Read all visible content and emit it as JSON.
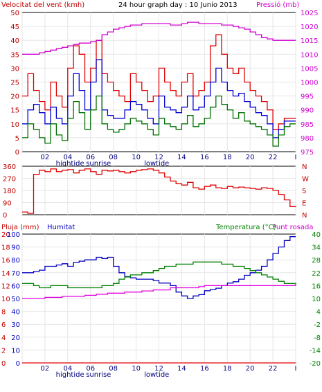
{
  "chart_data": [
    {
      "type": "line",
      "title": "24 hour graph day : 10 Junio 2013",
      "left_axis_label": "Velocitat del vent (kmh)",
      "right_axis_label": "Pressió (mb)",
      "x_tick_labels": [
        "02",
        "04",
        "06",
        "08",
        "10",
        "12",
        "14",
        "16",
        "18",
        "20",
        "22",
        "I"
      ],
      "x_annotations": [
        "hightide",
        "sunrise",
        "lowtide"
      ],
      "ylim_left": [
        0,
        50
      ],
      "ylim_right": [
        975,
        1025
      ],
      "yticks_left": [
        "0",
        "5",
        "10",
        "15",
        "20",
        "25",
        "30",
        "35",
        "40",
        "45",
        "50"
      ],
      "yticks_right": [
        "975",
        "980",
        "985",
        "990",
        "995",
        "1000",
        "1005",
        "1010",
        "1015",
        "1020",
        "1025"
      ],
      "x_hours": [
        0,
        0.5,
        1,
        1.5,
        2,
        2.5,
        3,
        3.5,
        4,
        4.5,
        5,
        5.5,
        6,
        6.5,
        7,
        7.5,
        8,
        8.5,
        9,
        9.5,
        10,
        10.5,
        11,
        11.5,
        12,
        12.5,
        13,
        13.5,
        14,
        14.5,
        15,
        15.5,
        16,
        16.5,
        17,
        17.5,
        18,
        18.5,
        19,
        19.5,
        20,
        20.5,
        21,
        21.5,
        22,
        22.5,
        23,
        23.5,
        24
      ],
      "series": [
        {
          "name": "gust",
          "color": "#e00000",
          "axis": "left",
          "values": [
            20,
            28,
            22,
            18,
            15,
            25,
            20,
            16,
            30,
            38,
            35,
            25,
            30,
            40,
            28,
            25,
            22,
            20,
            18,
            28,
            25,
            22,
            18,
            20,
            30,
            25,
            22,
            20,
            25,
            28,
            20,
            22,
            25,
            38,
            42,
            35,
            30,
            28,
            30,
            25,
            22,
            20,
            18,
            15,
            8,
            10,
            12,
            12,
            12
          ]
        },
        {
          "name": "average",
          "color": "#0000d0",
          "axis": "left",
          "values": [
            10,
            15,
            17,
            14,
            10,
            16,
            12,
            10,
            20,
            28,
            22,
            15,
            25,
            33,
            15,
            13,
            12,
            12,
            15,
            18,
            17,
            15,
            12,
            10,
            20,
            16,
            15,
            14,
            16,
            20,
            15,
            16,
            20,
            25,
            30,
            25,
            22,
            20,
            21,
            18,
            16,
            14,
            13,
            10,
            5,
            8,
            11,
            11,
            11
          ]
        },
        {
          "name": "wind",
          "color": "#007000",
          "axis": "left",
          "values": [
            5,
            10,
            8,
            5,
            3,
            10,
            6,
            4,
            12,
            18,
            14,
            8,
            15,
            20,
            10,
            8,
            7,
            8,
            10,
            12,
            11,
            10,
            8,
            6,
            12,
            10,
            9,
            8,
            10,
            13,
            9,
            10,
            12,
            16,
            20,
            17,
            15,
            12,
            14,
            11,
            10,
            9,
            8,
            6,
            2,
            6,
            9,
            10,
            10
          ]
        },
        {
          "name": "pressure",
          "color": "#d000d0",
          "axis": "right",
          "values": [
            1010,
            1010,
            1010,
            1010.5,
            1011,
            1011.5,
            1012,
            1012.5,
            1013,
            1013.5,
            1014,
            1014,
            1014.5,
            1015,
            1017,
            1018,
            1019,
            1019.5,
            1020,
            1020.5,
            1020.5,
            1021,
            1021,
            1021,
            1021,
            1021,
            1020.5,
            1020.5,
            1021,
            1021.5,
            1021.5,
            1021,
            1021,
            1021,
            1021,
            1020.5,
            1020.5,
            1020,
            1019.5,
            1019,
            1018,
            1017,
            1016,
            1015.5,
            1015,
            1015,
            1015,
            1015,
            1015
          ]
        }
      ]
    },
    {
      "type": "scatter",
      "left_ticks": [
        "0",
        "90",
        "180",
        "270",
        "360"
      ],
      "right_labels": [
        "N",
        "W",
        "S",
        "E",
        "N"
      ],
      "ylim": [
        0,
        360
      ],
      "x_hours": [
        0,
        0.5,
        1,
        1.5,
        2,
        2.5,
        3,
        3.5,
        4,
        4.5,
        5,
        5.5,
        6,
        6.5,
        7,
        7.5,
        8,
        8.5,
        9,
        9.5,
        10,
        10.5,
        11,
        11.5,
        12,
        12.5,
        13,
        13.5,
        14,
        14.5,
        15,
        15.5,
        16,
        16.5,
        17,
        17.5,
        18,
        18.5,
        19,
        19.5,
        20,
        20.5,
        21,
        21.5,
        22,
        22.5,
        23,
        23.5,
        24
      ],
      "series": [
        {
          "name": "direction",
          "color": "#e00000",
          "values": [
            20,
            10,
            300,
            330,
            320,
            340,
            320,
            330,
            335,
            310,
            330,
            340,
            320,
            300,
            330,
            325,
            330,
            320,
            310,
            320,
            330,
            335,
            340,
            330,
            310,
            280,
            250,
            230,
            220,
            240,
            200,
            190,
            210,
            220,
            200,
            195,
            210,
            200,
            205,
            200,
            195,
            190,
            200,
            195,
            180,
            150,
            110,
            60,
            55
          ]
        }
      ]
    },
    {
      "type": "line",
      "labels": {
        "rain": "Pluja (mm)",
        "humidity": "Humitat",
        "temperature": "Temperatura (°C)",
        "dewpoint": "Punt rosada"
      },
      "rain_ticks": [
        "0",
        "2",
        "4",
        "6",
        "8",
        "10",
        "12",
        "14",
        "16",
        "18",
        "20"
      ],
      "humidity_ticks": [
        "0",
        "10",
        "20",
        "30",
        "40",
        "50",
        "60",
        "70",
        "80",
        "90",
        "100"
      ],
      "temp_ticks": [
        "-20",
        "-14",
        "-8",
        "-2",
        "4",
        "10",
        "16",
        "22",
        "28",
        "34",
        "40"
      ],
      "ylim_humidity": [
        0,
        100
      ],
      "ylim_temp": [
        -20,
        40
      ],
      "x_tick_labels": [
        "02",
        "04",
        "06",
        "08",
        "10",
        "12",
        "14",
        "16",
        "18",
        "20",
        "22",
        "I"
      ],
      "x_annotations": [
        "hightide",
        "sunrise",
        "lowtide"
      ],
      "x_hours": [
        0,
        0.5,
        1,
        1.5,
        2,
        2.5,
        3,
        3.5,
        4,
        4.5,
        5,
        5.5,
        6,
        6.5,
        7,
        7.5,
        8,
        8.5,
        9,
        9.5,
        10,
        10.5,
        11,
        11.5,
        12,
        12.5,
        13,
        13.5,
        14,
        14.5,
        15,
        15.5,
        16,
        16.5,
        17,
        17.5,
        18,
        18.5,
        19,
        19.5,
        20,
        20.5,
        21,
        21.5,
        22,
        22.5,
        23,
        23.5,
        24
      ],
      "series": [
        {
          "name": "humidity",
          "color": "#0000c0",
          "axis": "humidity",
          "values": [
            70,
            70,
            71,
            72,
            75,
            75,
            76,
            77,
            75,
            78,
            79,
            80,
            80,
            82,
            81,
            82,
            75,
            70,
            67,
            66,
            65,
            65,
            65,
            64,
            62,
            62,
            60,
            55,
            52,
            50,
            52,
            53,
            56,
            57,
            58,
            60,
            62,
            63,
            65,
            68,
            70,
            72,
            75,
            80,
            85,
            90,
            95,
            98,
            98
          ]
        },
        {
          "name": "temperature",
          "color": "#008000",
          "axis": "temp",
          "values": [
            17,
            17,
            16,
            15,
            15,
            16,
            16,
            16,
            15,
            15,
            15,
            15,
            15,
            15,
            16,
            16,
            17,
            19,
            20,
            21,
            21,
            22,
            22,
            23,
            24,
            25,
            25,
            26,
            26,
            26,
            27,
            27,
            27,
            27,
            27,
            26,
            26,
            25,
            25,
            24,
            23,
            22,
            21,
            20,
            19,
            18,
            17,
            17,
            16
          ]
        },
        {
          "name": "dewpoint",
          "color": "#e000e0",
          "axis": "temp",
          "values": [
            10,
            10,
            10,
            10,
            10.5,
            10.5,
            10.5,
            11,
            11,
            11,
            11,
            11.5,
            11.5,
            12,
            12,
            12.5,
            12.5,
            12.5,
            13,
            13,
            13,
            13.5,
            13.5,
            14,
            14,
            14,
            15,
            15,
            15,
            15,
            15,
            15.5,
            16,
            16,
            16,
            16,
            16,
            16,
            16,
            16,
            16,
            16,
            16,
            16,
            16,
            16,
            16,
            16,
            16
          ]
        },
        {
          "name": "rain",
          "color": "#e00000",
          "axis": "rain",
          "values": [
            0,
            0,
            0,
            0,
            0,
            0,
            0,
            0,
            0,
            0,
            0,
            0,
            0,
            0,
            0,
            0,
            0,
            0,
            0,
            0,
            0,
            0,
            0,
            0,
            0,
            0,
            0,
            0,
            0,
            0,
            0,
            0,
            0,
            0,
            0,
            0,
            0,
            0,
            0,
            0,
            0,
            0,
            0,
            0,
            0,
            0,
            0,
            0,
            0
          ]
        }
      ]
    }
  ]
}
